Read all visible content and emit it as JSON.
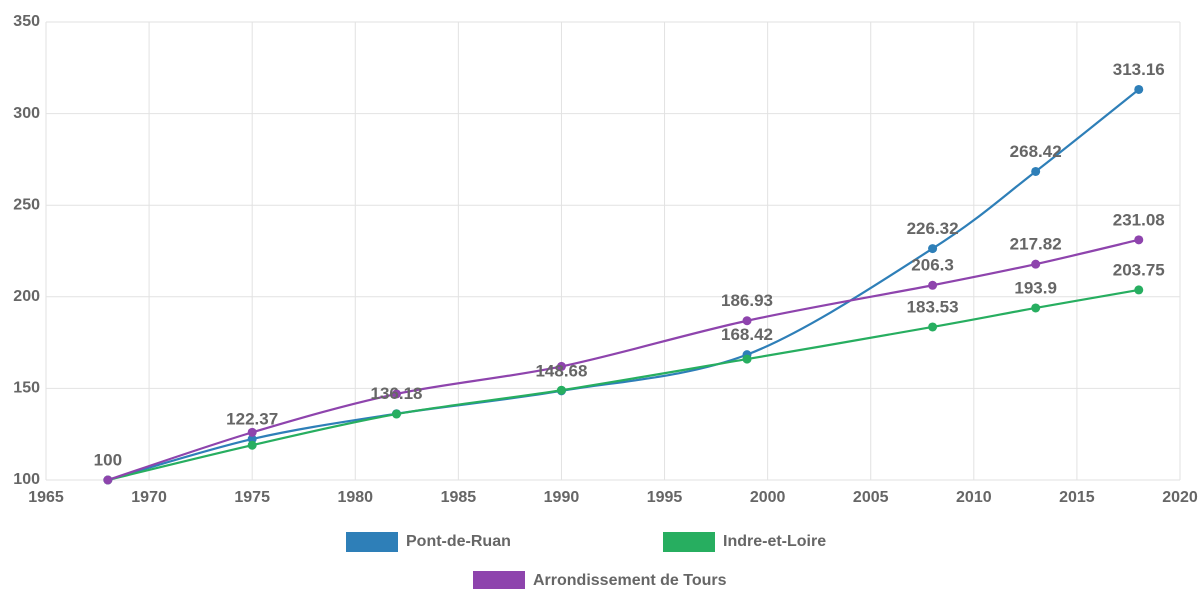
{
  "chart_data": {
    "type": "line",
    "x": [
      1968,
      1975,
      1982,
      1990,
      1999,
      2008,
      2013,
      2018
    ],
    "series": [
      {
        "name": "Pont-de-Ruan",
        "color": "#2e7fb8",
        "values": [
          100,
          122.37,
          136.18,
          148.68,
          168.42,
          226.32,
          268.42,
          313.16
        ],
        "value_labels": [
          "100",
          "122.37",
          "136.18",
          "148.68",
          "168.42",
          "226.32",
          "268.42",
          "313.16"
        ]
      },
      {
        "name": "Indre-et-Loire",
        "color": "#27ae60",
        "values": [
          100,
          119,
          136,
          149,
          166,
          183.53,
          193.9,
          203.75
        ],
        "value_labels": [
          null,
          null,
          null,
          null,
          null,
          "183.53",
          "193.9",
          "203.75"
        ]
      },
      {
        "name": "Arrondissement de Tours",
        "color": "#8e44ad",
        "values": [
          100,
          126,
          147,
          162,
          186.93,
          206.3,
          217.82,
          231.08
        ],
        "value_labels": [
          null,
          null,
          null,
          null,
          "186.93",
          "206.3",
          "217.82",
          "231.08"
        ]
      }
    ],
    "xlim": [
      1965,
      2020
    ],
    "xticks": [
      1965,
      1970,
      1975,
      1980,
      1985,
      1990,
      1995,
      2000,
      2005,
      2010,
      2015,
      2020
    ],
    "ylim": [
      100,
      350
    ],
    "yticks": [
      100,
      150,
      200,
      250,
      300,
      350
    ],
    "grid": true,
    "legend": "bottom"
  }
}
